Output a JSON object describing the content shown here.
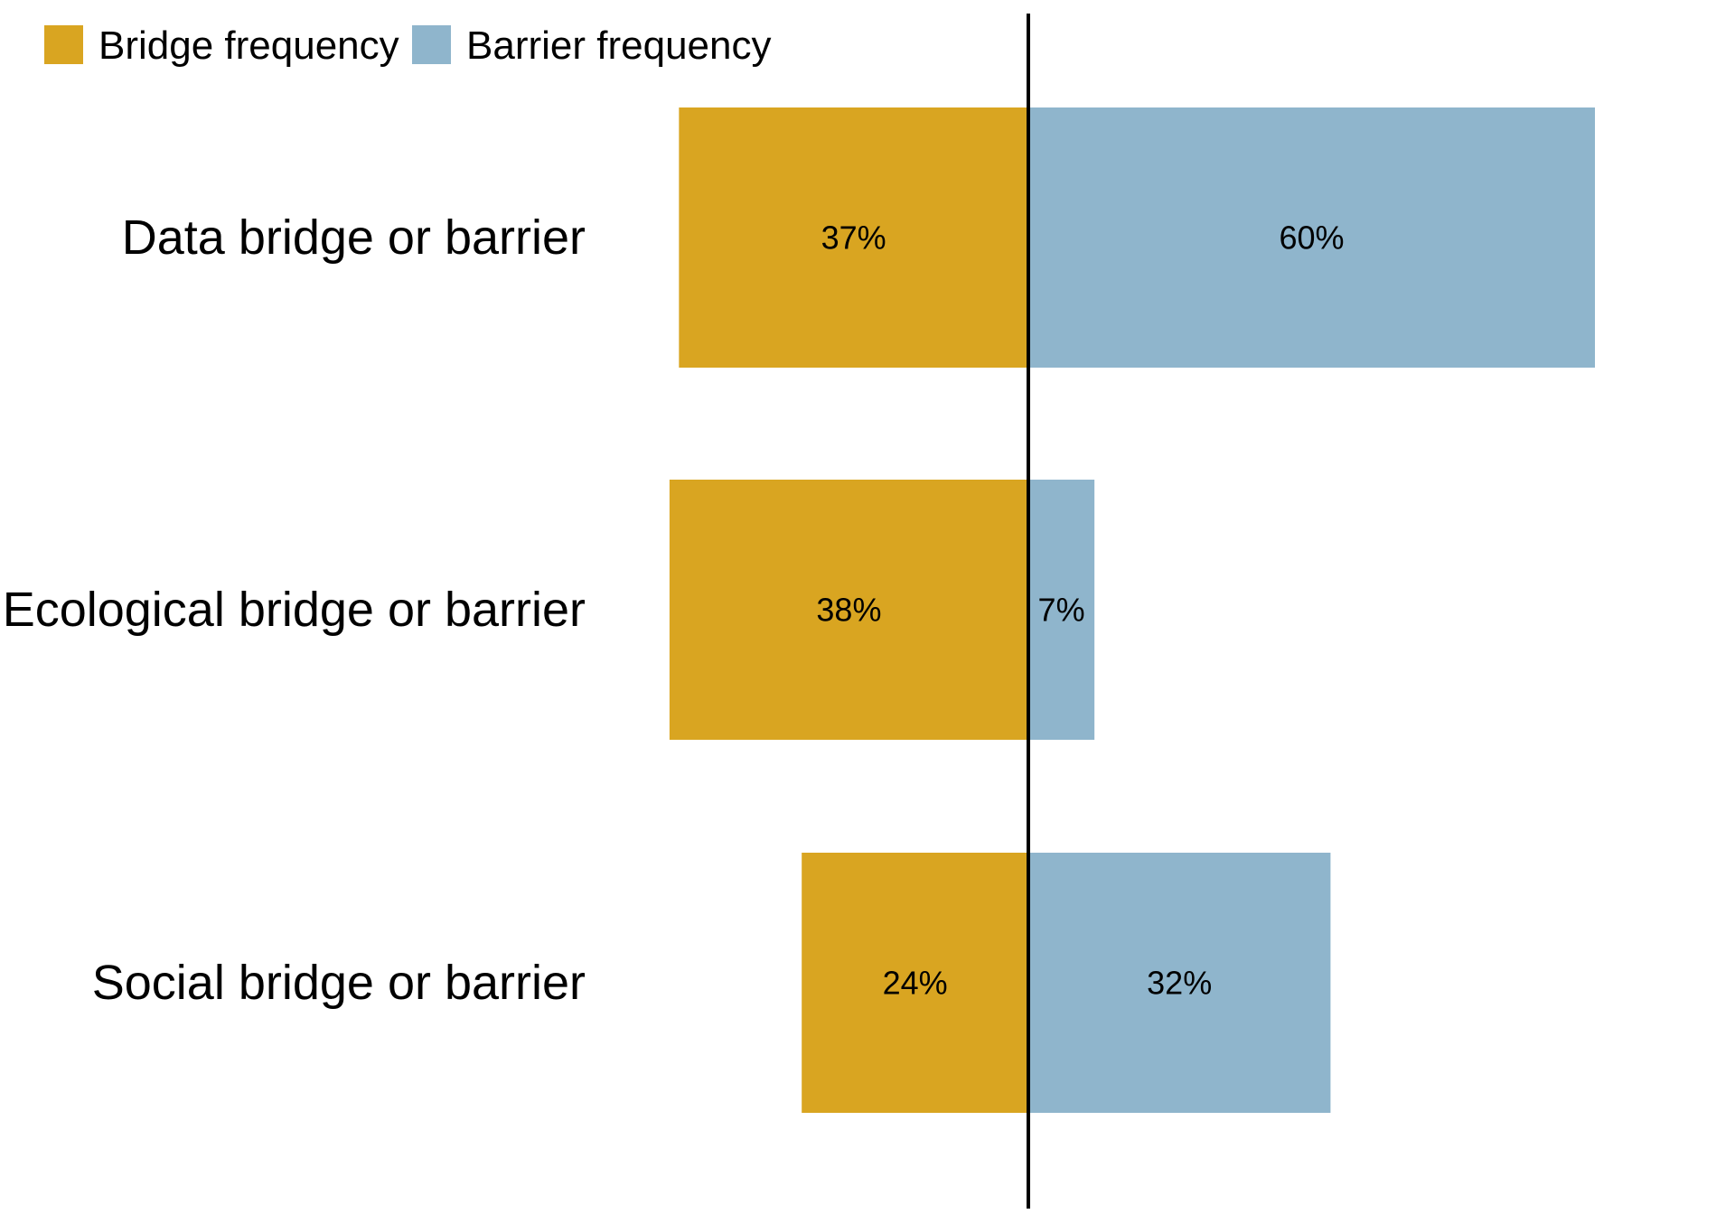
{
  "chart_data": {
    "type": "bar",
    "orientation": "horizontal-diverging",
    "categories": [
      "Data bridge or barrier",
      "Ecological bridge or barrier",
      "Social bridge or barrier"
    ],
    "series": [
      {
        "name": "Bridge frequency",
        "values": [
          37,
          38,
          24
        ],
        "labels": [
          "37%",
          "38%",
          "24%"
        ],
        "direction": "left",
        "color": "#D9A521"
      },
      {
        "name": "Barrier frequency",
        "values": [
          60,
          7,
          32
        ],
        "labels": [
          "60%",
          "7%",
          "32%"
        ],
        "direction": "right",
        "color": "#8FB5CC"
      }
    ],
    "unit": "%",
    "xlim": [
      -38,
      60
    ],
    "grid": false,
    "legend": "top-left",
    "axis_line_color": "#000000"
  }
}
